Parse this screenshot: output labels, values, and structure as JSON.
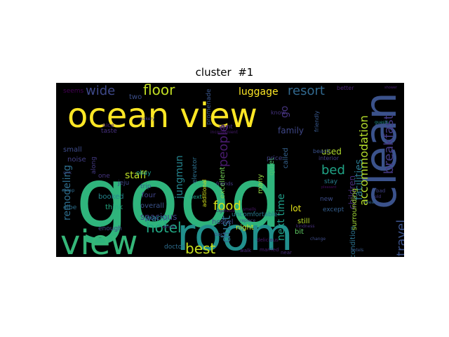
{
  "title": "cluster  #1",
  "colors": {
    "background": "#000000",
    "page": "#ffffff",
    "palette": "viridis"
  },
  "words": [
    {
      "text": "good",
      "color": "#2fb47c"
    },
    {
      "text": "room",
      "color": "#21908d"
    },
    {
      "text": "ocean view",
      "color": "#fde725"
    },
    {
      "text": "clean",
      "color": "#3b528b"
    },
    {
      "text": "view",
      "color": "#35b779"
    },
    {
      "text": "hotel",
      "color": "#22a884"
    },
    {
      "text": "floor",
      "color": "#c2df23"
    },
    {
      "text": "wide",
      "color": "#3e4989"
    },
    {
      "text": "best",
      "color": "#c8e020"
    },
    {
      "text": "people",
      "color": "#481b6d"
    },
    {
      "text": "resort",
      "color": "#31688e"
    },
    {
      "text": "breakfast",
      "color": "#443983"
    },
    {
      "text": "accommodation",
      "color": "#b5de2b"
    },
    {
      "text": "food",
      "color": "#d8e219"
    },
    {
      "text": "dust",
      "color": "#2c728e"
    },
    {
      "text": "bed",
      "color": "#20a386"
    },
    {
      "text": "luggage",
      "color": "#fde725"
    },
    {
      "text": "facilities",
      "color": "#2a788e"
    },
    {
      "text": "travel",
      "color": "#3b528b"
    },
    {
      "text": "remodeling",
      "color": "#2e6e8e"
    },
    {
      "text": "staff",
      "color": "#bddf26"
    },
    {
      "text": "jungmun",
      "color": "#25848e"
    },
    {
      "text": "next time",
      "color": "#1f9e89"
    },
    {
      "text": "used",
      "color": "#b2dd2d"
    },
    {
      "text": "children",
      "color": "#472c7a"
    },
    {
      "text": "spacious",
      "color": "#414487"
    },
    {
      "text": "warm",
      "color": "#277f8e"
    },
    {
      "text": "go",
      "color": "#46337e"
    },
    {
      "text": "family",
      "color": "#3f4788"
    },
    {
      "text": "lot",
      "color": "#e5e419"
    },
    {
      "text": "condition",
      "color": "#2c728e"
    },
    {
      "text": "hostel",
      "color": "#3e4a89"
    },
    {
      "text": "night",
      "color": "#cae11f"
    },
    {
      "text": "still",
      "color": "#b8de29"
    },
    {
      "text": "bit",
      "color": "#5ec962"
    },
    {
      "text": "surrounding",
      "color": "#a2da37"
    },
    {
      "text": "many",
      "color": "#93d741"
    },
    {
      "text": "excellent",
      "color": "#73d056"
    },
    {
      "text": "quiet",
      "color": "#4ac16d"
    },
    {
      "text": "called",
      "color": "#34618d"
    },
    {
      "text": "overall",
      "color": "#3a538b"
    },
    {
      "text": "think",
      "color": "#25ab82"
    },
    {
      "text": "booked",
      "color": "#24868e"
    },
    {
      "text": "elevator",
      "color": "#2d708e"
    },
    {
      "text": "four",
      "color": "#404588"
    },
    {
      "text": "trip",
      "color": "#355f8d"
    },
    {
      "text": "two",
      "color": "#3c4f8a"
    },
    {
      "text": "okay",
      "color": "#1f9a8a"
    },
    {
      "text": "noise",
      "color": "#423f85"
    },
    {
      "text": "small",
      "color": "#3e4c8a"
    },
    {
      "text": "taste",
      "color": "#46307e"
    },
    {
      "text": "seems",
      "color": "#440154"
    },
    {
      "text": "along",
      "color": "#443a83"
    },
    {
      "text": "promenade",
      "color": "#39568c"
    },
    {
      "text": "uncomfortable",
      "color": "#2a788e"
    },
    {
      "text": "additional",
      "color": "#d2e21b"
    },
    {
      "text": "price",
      "color": "#424086"
    },
    {
      "text": "new",
      "color": "#3d4d8a"
    },
    {
      "text": "stay",
      "color": "#277e8e"
    },
    {
      "text": "except",
      "color": "#345e8d"
    },
    {
      "text": "went",
      "color": "#46327e"
    },
    {
      "text": "elbe",
      "color": "#2d708e"
    },
    {
      "text": "enough",
      "color": "#3f4889"
    },
    {
      "text": "doctor",
      "color": "#2e6d8e"
    },
    {
      "text": "next",
      "color": "#1fa188"
    },
    {
      "text": "nice",
      "color": "#482576"
    },
    {
      "text": "better",
      "color": "#482374"
    },
    {
      "text": "one",
      "color": "#463480"
    },
    {
      "text": "friendly",
      "color": "#38588c"
    },
    {
      "text": "interior",
      "color": "#433e85"
    },
    {
      "text": "beach",
      "color": "#3b528b"
    },
    {
      "text": "know",
      "color": "#46337f"
    },
    {
      "text": "jeju",
      "color": "#3f4889"
    },
    {
      "text": "married",
      "color": "#481f70"
    },
    {
      "text": "near",
      "color": "#472d7b"
    },
    {
      "text": "walk",
      "color": "#482979"
    },
    {
      "text": "friends",
      "color": "#443983"
    },
    {
      "text": "delicious",
      "color": "#48186a"
    },
    {
      "text": "cigarette",
      "color": "#47125f"
    },
    {
      "text": "replace",
      "color": "#3e4a89"
    },
    {
      "text": "bad",
      "color": "#404387"
    },
    {
      "text": "change",
      "color": "#3e4c8a"
    },
    {
      "text": "smells",
      "color": "#481668"
    },
    {
      "text": "bakery",
      "color": "#433d84"
    },
    {
      "text": "back",
      "color": "#3b518b"
    },
    {
      "text": "kindness",
      "color": "#472f7d"
    },
    {
      "text": "whole",
      "color": "#482878"
    },
    {
      "text": "inconvenient",
      "color": "#481d6f"
    },
    {
      "text": "cheap",
      "color": "#2f6b8e"
    },
    {
      "text": "guests",
      "color": "#21918c"
    },
    {
      "text": "old",
      "color": "#453581"
    },
    {
      "text": "sink",
      "color": "#3f4788"
    },
    {
      "text": "hotels",
      "color": "#38598c"
    },
    {
      "text": "pleasant",
      "color": "#460b5e"
    },
    {
      "text": "meal",
      "color": "#32648e"
    },
    {
      "text": "shower",
      "color": "#482071"
    }
  ]
}
